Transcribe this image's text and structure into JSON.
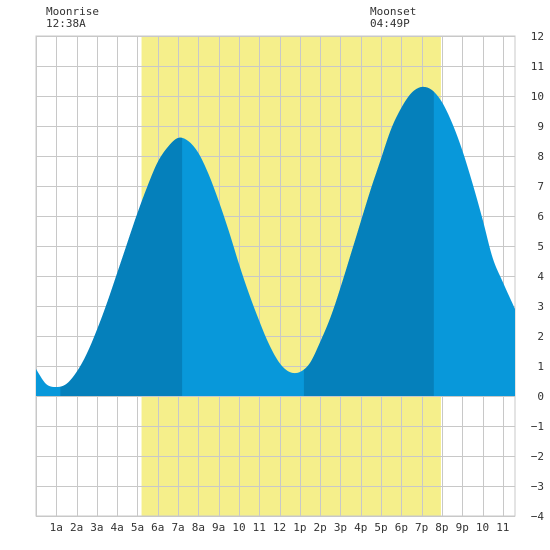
{
  "moonrise": {
    "label": "Moonrise",
    "time": "12:38A"
  },
  "moonset": {
    "label": "Moonset",
    "time": "04:49P"
  },
  "colors": {
    "daylight": "#f5ef8b",
    "tide_light": "#0898da",
    "tide_dark": "#0580bb",
    "grid": "#c8c8c8",
    "background": "#ffffff"
  },
  "chart_data": {
    "type": "area",
    "title": "",
    "xlabel": "",
    "ylabel": "",
    "grid": true,
    "xlim": [
      0,
      23.6
    ],
    "ylim": [
      -4,
      12
    ],
    "x_tick_labels": [
      {
        "hour": 1,
        "label": "1a"
      },
      {
        "hour": 2,
        "label": "2a"
      },
      {
        "hour": 3,
        "label": "3a"
      },
      {
        "hour": 4,
        "label": "4a"
      },
      {
        "hour": 5,
        "label": "5a"
      },
      {
        "hour": 6,
        "label": "6a"
      },
      {
        "hour": 7,
        "label": "7a"
      },
      {
        "hour": 8,
        "label": "8a"
      },
      {
        "hour": 9,
        "label": "9a"
      },
      {
        "hour": 10,
        "label": "10"
      },
      {
        "hour": 11,
        "label": "11"
      },
      {
        "hour": 12,
        "label": "12"
      },
      {
        "hour": 13,
        "label": "1p"
      },
      {
        "hour": 14,
        "label": "2p"
      },
      {
        "hour": 15,
        "label": "3p"
      },
      {
        "hour": 16,
        "label": "4p"
      },
      {
        "hour": 17,
        "label": "5p"
      },
      {
        "hour": 18,
        "label": "6p"
      },
      {
        "hour": 19,
        "label": "7p"
      },
      {
        "hour": 20,
        "label": "8p"
      },
      {
        "hour": 21,
        "label": "9p"
      },
      {
        "hour": 22,
        "label": "10"
      },
      {
        "hour": 23,
        "label": "11"
      }
    ],
    "y_ticks": [
      -4,
      -3,
      -2,
      -1,
      0,
      1,
      2,
      3,
      4,
      5,
      6,
      7,
      8,
      9,
      10,
      11,
      12
    ],
    "daylight_hours": [
      5.2,
      19.95
    ],
    "tide_extremes": [
      {
        "hour": 1.2,
        "height": 0.2,
        "kind": "low"
      },
      {
        "hour": 7.2,
        "height": 8.6,
        "kind": "high"
      },
      {
        "hour": 13.2,
        "height": 0.8,
        "kind": "low"
      },
      {
        "hour": 19.6,
        "height": 10.3,
        "kind": "high"
      }
    ],
    "series": [
      {
        "x": [
          0,
          0.5,
          1.0,
          1.5,
          2.0,
          2.5,
          3.0,
          3.5,
          4.0,
          4.5,
          5.0,
          5.5,
          6.0,
          6.5,
          7.0,
          7.5,
          8.0,
          8.5,
          9.0,
          9.5,
          10.0,
          10.5,
          11.0,
          11.5,
          12.0,
          12.5,
          13.0,
          13.5,
          14.0,
          14.5,
          15.0,
          15.5,
          16.0,
          16.5,
          17.0,
          17.5,
          18.0,
          18.5,
          19.0,
          19.5,
          20.0,
          20.5,
          21.0,
          21.5,
          22.0,
          22.5,
          23.0,
          23.6
        ],
        "y": [
          0.9,
          0.4,
          0.3,
          0.4,
          0.8,
          1.4,
          2.2,
          3.1,
          4.1,
          5.1,
          6.1,
          7.0,
          7.8,
          8.3,
          8.6,
          8.5,
          8.1,
          7.4,
          6.5,
          5.5,
          4.4,
          3.4,
          2.5,
          1.7,
          1.1,
          0.8,
          0.8,
          1.1,
          1.8,
          2.6,
          3.6,
          4.7,
          5.8,
          6.9,
          7.9,
          8.9,
          9.6,
          10.1,
          10.3,
          10.2,
          9.8,
          9.1,
          8.2,
          7.1,
          5.9,
          4.6,
          3.8,
          2.9
        ]
      }
    ]
  }
}
